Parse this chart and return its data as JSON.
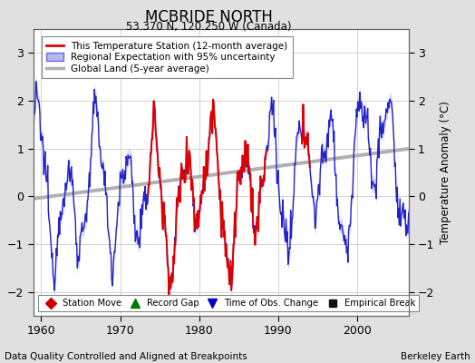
{
  "title": "MCBRIDE NORTH",
  "subtitle": "53.370 N, 120.250 W (Canada)",
  "ylabel": "Temperature Anomaly (°C)",
  "xlabel_note": "Data Quality Controlled and Aligned at Breakpoints",
  "credit": "Berkeley Earth",
  "year_start": 1959,
  "year_end": 2006.5,
  "ylim": [
    -2.5,
    3.5
  ],
  "yticks": [
    -2,
    -1,
    0,
    1,
    2,
    3
  ],
  "xticks": [
    1960,
    1970,
    1980,
    1990,
    2000
  ],
  "bg_color": "#e0e0e0",
  "plot_bg_color": "#ffffff",
  "title_fontsize": 12,
  "subtitle_fontsize": 8.5,
  "legend_items": [
    {
      "label": "This Temperature Station (12-month average)",
      "color": "#dd0000"
    },
    {
      "label": "Regional Expectation with 95% uncertainty",
      "color": "#2222cc"
    },
    {
      "label": "Global Land (5-year average)",
      "color": "#aaaaaa"
    }
  ],
  "marker_legend": [
    {
      "marker": "D",
      "color": "#cc0000",
      "label": "Station Move"
    },
    {
      "marker": "^",
      "color": "#007700",
      "label": "Record Gap"
    },
    {
      "marker": "v",
      "color": "#0000cc",
      "label": "Time of Obs. Change"
    },
    {
      "marker": "s",
      "color": "#111111",
      "label": "Empirical Break"
    }
  ]
}
